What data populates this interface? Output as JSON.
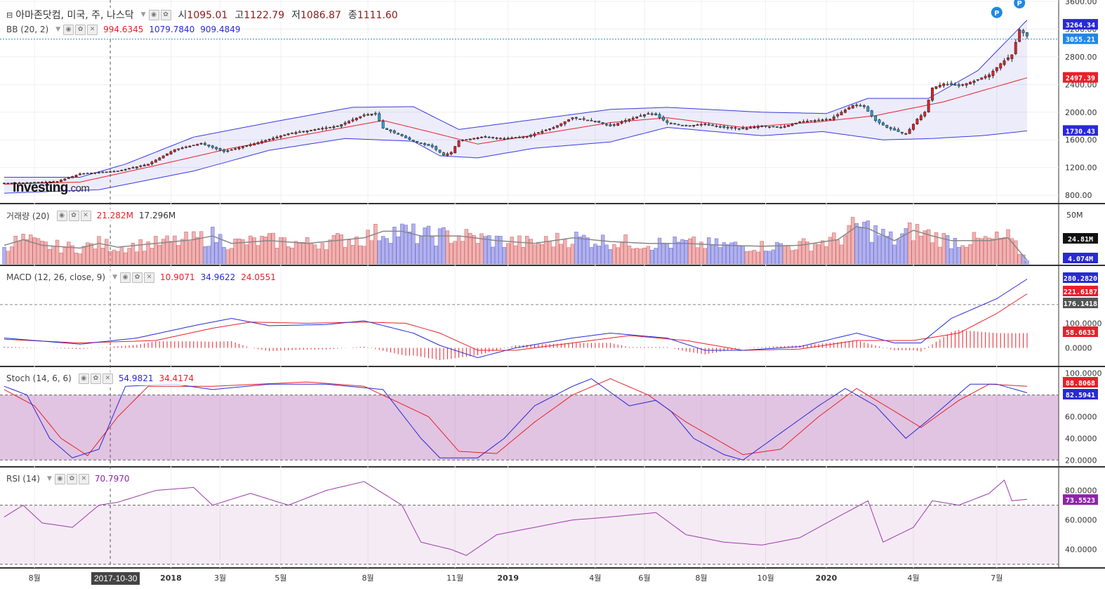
{
  "main_legend": {
    "title": "아마존닷컴, 미국, 주, 나스닥",
    "o_label": "시",
    "o": "1095.01",
    "h_label": "고",
    "h": "1122.79",
    "l_label": "저",
    "l": "1086.87",
    "c_label": "종",
    "c": "1111.60"
  },
  "bb_legend": {
    "title": "BB (20, 2)",
    "v1": "994.6345",
    "v2": "1079.7840",
    "v3": "909.4849",
    "c1": "#e8202a",
    "c2": "#2929d6",
    "c3": "#2929d6"
  },
  "vol_legend": {
    "title": "거래량 (20)",
    "v1": "21.282M",
    "v2": "17.296M"
  },
  "macd_legend": {
    "title": "MACD (12, 26, close, 9)",
    "v1": "10.9071",
    "v2": "34.9622",
    "v3": "24.0551"
  },
  "stoch_legend": {
    "title": "Stoch (14, 6, 6)",
    "v1": "54.9821",
    "v2": "34.4174"
  },
  "rsi_legend": {
    "title": "RSI (14)",
    "v1": "70.7970"
  },
  "logo": {
    "main": "Investing",
    "suffix": ".com"
  },
  "cursor_date": "2017-10-30",
  "chart_data": [
    {
      "type": "candlestick",
      "title": "아마존닷컴, 미국, 주, 나스닥",
      "y_ticks": [
        "3600.00",
        "3200.00",
        "2800.00",
        "2400.00",
        "2000.00",
        "1600.00",
        "1200.00",
        "800.00"
      ],
      "ylim": [
        700,
        3620
      ],
      "x_ticks": [
        "8월",
        "2018",
        "3월",
        "5월",
        "8월",
        "11월",
        "2019",
        "4월",
        "6월",
        "8월",
        "10월",
        "2020",
        "4월",
        "7월"
      ],
      "price_line": 3055.21,
      "last_values": {
        "3264.34": "#2929d6",
        "3055.21": "#1e88e5",
        "2497.39": "#e8202a",
        "1730.43": "#2929d6"
      },
      "keyframes_close": [
        [
          0,
          975
        ],
        [
          8,
          985
        ],
        [
          14,
          1000
        ],
        [
          20,
          1110
        ],
        [
          30,
          1150
        ],
        [
          38,
          1250
        ],
        [
          45,
          1460
        ],
        [
          52,
          1550
        ],
        [
          58,
          1430
        ],
        [
          65,
          1530
        ],
        [
          75,
          1690
        ],
        [
          88,
          1800
        ],
        [
          95,
          1960
        ],
        [
          98,
          1980
        ],
        [
          100,
          1770
        ],
        [
          104,
          1680
        ],
        [
          108,
          1580
        ],
        [
          113,
          1500
        ],
        [
          116,
          1380
        ],
        [
          118,
          1420
        ],
        [
          120,
          1590
        ],
        [
          126,
          1640
        ],
        [
          132,
          1620
        ],
        [
          138,
          1650
        ],
        [
          145,
          1780
        ],
        [
          150,
          1920
        ],
        [
          156,
          1870
        ],
        [
          160,
          1800
        ],
        [
          165,
          1900
        ],
        [
          170,
          1980
        ],
        [
          172,
          1960
        ],
        [
          175,
          1850
        ],
        [
          180,
          1800
        ],
        [
          185,
          1830
        ],
        [
          190,
          1780
        ],
        [
          195,
          1760
        ],
        [
          200,
          1800
        ],
        [
          205,
          1780
        ],
        [
          210,
          1860
        ],
        [
          218,
          1900
        ],
        [
          221,
          2000
        ],
        [
          224,
          2100
        ],
        [
          227,
          2080
        ],
        [
          230,
          1880
        ],
        [
          233,
          1780
        ],
        [
          238,
          1680
        ],
        [
          241,
          1900
        ],
        [
          243,
          2000
        ],
        [
          245,
          2350
        ],
        [
          248,
          2410
        ],
        [
          252,
          2380
        ],
        [
          256,
          2450
        ],
        [
          260,
          2540
        ],
        [
          263,
          2700
        ],
        [
          266,
          2830
        ],
        [
          268,
          3190
        ],
        [
          270,
          3100
        ]
      ],
      "bb_upper_keyframes": [
        [
          0,
          1060
        ],
        [
          20,
          1060
        ],
        [
          32,
          1250
        ],
        [
          50,
          1640
        ],
        [
          70,
          1850
        ],
        [
          92,
          2070
        ],
        [
          108,
          2080
        ],
        [
          120,
          1750
        ],
        [
          138,
          1880
        ],
        [
          160,
          2040
        ],
        [
          175,
          2070
        ],
        [
          200,
          2000
        ],
        [
          217,
          1980
        ],
        [
          228,
          2200
        ],
        [
          244,
          2200
        ],
        [
          257,
          2600
        ],
        [
          270,
          3330
        ]
      ],
      "bb_mid_keyframes": [
        [
          0,
          960
        ],
        [
          20,
          990
        ],
        [
          40,
          1230
        ],
        [
          60,
          1480
        ],
        [
          80,
          1680
        ],
        [
          100,
          1880
        ],
        [
          112,
          1720
        ],
        [
          125,
          1540
        ],
        [
          140,
          1670
        ],
        [
          160,
          1850
        ],
        [
          175,
          1920
        ],
        [
          195,
          1780
        ],
        [
          215,
          1860
        ],
        [
          230,
          1950
        ],
        [
          248,
          2150
        ],
        [
          270,
          2497
        ]
      ],
      "bb_lower_keyframes": [
        [
          0,
          830
        ],
        [
          25,
          880
        ],
        [
          50,
          1150
        ],
        [
          70,
          1450
        ],
        [
          90,
          1620
        ],
        [
          108,
          1580
        ],
        [
          115,
          1370
        ],
        [
          125,
          1340
        ],
        [
          140,
          1480
        ],
        [
          160,
          1570
        ],
        [
          175,
          1780
        ],
        [
          200,
          1660
        ],
        [
          216,
          1720
        ],
        [
          232,
          1600
        ],
        [
          245,
          1620
        ],
        [
          258,
          1660
        ],
        [
          265,
          1700
        ],
        [
          270,
          1730
        ]
      ]
    },
    {
      "type": "bar",
      "title": "거래량 (20)",
      "y_ticks": [
        "50M"
      ],
      "last_values": {
        "24.81M": "#111111",
        "4.074M": "#2929d6"
      },
      "volume_keyframes": [
        [
          0,
          20
        ],
        [
          5,
          26
        ],
        [
          10,
          20
        ],
        [
          20,
          17
        ],
        [
          25,
          22
        ],
        [
          30,
          18
        ],
        [
          40,
          22
        ],
        [
          50,
          26
        ],
        [
          55,
          30
        ],
        [
          60,
          22
        ],
        [
          70,
          25
        ],
        [
          80,
          22
        ],
        [
          95,
          28
        ],
        [
          100,
          35
        ],
        [
          105,
          35
        ],
        [
          110,
          30
        ],
        [
          120,
          30
        ],
        [
          130,
          25
        ],
        [
          140,
          22
        ],
        [
          150,
          28
        ],
        [
          160,
          24
        ],
        [
          170,
          22
        ],
        [
          180,
          22
        ],
        [
          190,
          20
        ],
        [
          200,
          19
        ],
        [
          210,
          20
        ],
        [
          220,
          26
        ],
        [
          225,
          40
        ],
        [
          228,
          38
        ],
        [
          235,
          25
        ],
        [
          240,
          36
        ],
        [
          245,
          30
        ],
        [
          250,
          25
        ],
        [
          260,
          25
        ],
        [
          265,
          28
        ],
        [
          270,
          4
        ]
      ]
    },
    {
      "type": "line",
      "title": "MACD (12, 26, close, 9)",
      "y_ticks": [
        "100.0000",
        "0.0000"
      ],
      "ylim": [
        -70,
        330
      ],
      "last_values": {
        "280.2820": "#2929d6",
        "221.6187": "#e8202a",
        "176.1418": "#555555",
        "58.6633": "#e8202a"
      },
      "macd_keyframes": [
        [
          0,
          40
        ],
        [
          20,
          15
        ],
        [
          35,
          40
        ],
        [
          50,
          90
        ],
        [
          60,
          120
        ],
        [
          70,
          90
        ],
        [
          85,
          95
        ],
        [
          95,
          110
        ],
        [
          108,
          60
        ],
        [
          115,
          10
        ],
        [
          125,
          -40
        ],
        [
          135,
          0
        ],
        [
          150,
          40
        ],
        [
          160,
          60
        ],
        [
          175,
          40
        ],
        [
          185,
          -10
        ],
        [
          195,
          -10
        ],
        [
          210,
          5
        ],
        [
          225,
          60
        ],
        [
          235,
          20
        ],
        [
          242,
          20
        ],
        [
          250,
          120
        ],
        [
          262,
          200
        ],
        [
          270,
          280
        ]
      ],
      "signal_keyframes": [
        [
          0,
          35
        ],
        [
          20,
          20
        ],
        [
          40,
          30
        ],
        [
          55,
          80
        ],
        [
          65,
          105
        ],
        [
          80,
          100
        ],
        [
          95,
          105
        ],
        [
          106,
          100
        ],
        [
          115,
          60
        ],
        [
          125,
          -10
        ],
        [
          135,
          -10
        ],
        [
          150,
          20
        ],
        [
          165,
          50
        ],
        [
          180,
          30
        ],
        [
          195,
          -10
        ],
        [
          210,
          -5
        ],
        [
          225,
          30
        ],
        [
          240,
          30
        ],
        [
          252,
          60
        ],
        [
          262,
          140
        ],
        [
          270,
          220
        ]
      ]
    },
    {
      "type": "line",
      "title": "Stoch (14, 6, 6)",
      "y_ticks": [
        "100.0000",
        "60.0000",
        "40.0000",
        "20.0000"
      ],
      "ylim": [
        15,
        105
      ],
      "last_values": {
        "88.8068": "#e8202a",
        "82.5941": "#2929d6"
      },
      "k_keyframes": [
        [
          0,
          88
        ],
        [
          6,
          80
        ],
        [
          12,
          40
        ],
        [
          18,
          22
        ],
        [
          25,
          30
        ],
        [
          32,
          88
        ],
        [
          45,
          90
        ],
        [
          55,
          85
        ],
        [
          70,
          90
        ],
        [
          85,
          90
        ],
        [
          100,
          85
        ],
        [
          110,
          40
        ],
        [
          115,
          22
        ],
        [
          125,
          22
        ],
        [
          132,
          40
        ],
        [
          140,
          70
        ],
        [
          150,
          88
        ],
        [
          155,
          95
        ],
        [
          165,
          70
        ],
        [
          172,
          75
        ],
        [
          176,
          65
        ],
        [
          182,
          40
        ],
        [
          190,
          25
        ],
        [
          195,
          20
        ],
        [
          205,
          45
        ],
        [
          215,
          70
        ],
        [
          222,
          86
        ],
        [
          230,
          70
        ],
        [
          238,
          40
        ],
        [
          245,
          60
        ],
        [
          255,
          90
        ],
        [
          262,
          90
        ],
        [
          270,
          82
        ]
      ],
      "d_keyframes": [
        [
          0,
          85
        ],
        [
          8,
          70
        ],
        [
          15,
          40
        ],
        [
          22,
          24
        ],
        [
          30,
          60
        ],
        [
          38,
          88
        ],
        [
          55,
          88
        ],
        [
          80,
          92
        ],
        [
          95,
          88
        ],
        [
          112,
          60
        ],
        [
          120,
          28
        ],
        [
          130,
          26
        ],
        [
          140,
          55
        ],
        [
          150,
          80
        ],
        [
          160,
          95
        ],
        [
          170,
          80
        ],
        [
          180,
          55
        ],
        [
          195,
          25
        ],
        [
          205,
          30
        ],
        [
          215,
          60
        ],
        [
          225,
          86
        ],
        [
          235,
          65
        ],
        [
          242,
          50
        ],
        [
          252,
          75
        ],
        [
          260,
          90
        ],
        [
          270,
          88
        ]
      ]
    },
    {
      "type": "line",
      "title": "RSI (14)",
      "y_ticks": [
        "80.0000",
        "60.0000",
        "40.0000"
      ],
      "ylim": [
        28,
        95
      ],
      "last_values": {
        "73.5523": "#8e24aa"
      },
      "rsi_keyframes": [
        [
          0,
          62
        ],
        [
          5,
          70
        ],
        [
          10,
          58
        ],
        [
          18,
          55
        ],
        [
          25,
          70
        ],
        [
          30,
          72
        ],
        [
          40,
          80
        ],
        [
          50,
          82
        ],
        [
          55,
          70
        ],
        [
          65,
          78
        ],
        [
          75,
          70
        ],
        [
          85,
          80
        ],
        [
          95,
          86
        ],
        [
          105,
          70
        ],
        [
          110,
          45
        ],
        [
          118,
          40
        ],
        [
          122,
          36
        ],
        [
          130,
          50
        ],
        [
          140,
          55
        ],
        [
          150,
          60
        ],
        [
          160,
          62
        ],
        [
          172,
          65
        ],
        [
          180,
          50
        ],
        [
          190,
          45
        ],
        [
          200,
          43
        ],
        [
          210,
          48
        ],
        [
          220,
          62
        ],
        [
          228,
          73
        ],
        [
          232,
          45
        ],
        [
          240,
          55
        ],
        [
          245,
          73
        ],
        [
          252,
          70
        ],
        [
          260,
          78
        ],
        [
          264,
          87
        ],
        [
          266,
          73
        ],
        [
          270,
          74
        ]
      ]
    }
  ]
}
